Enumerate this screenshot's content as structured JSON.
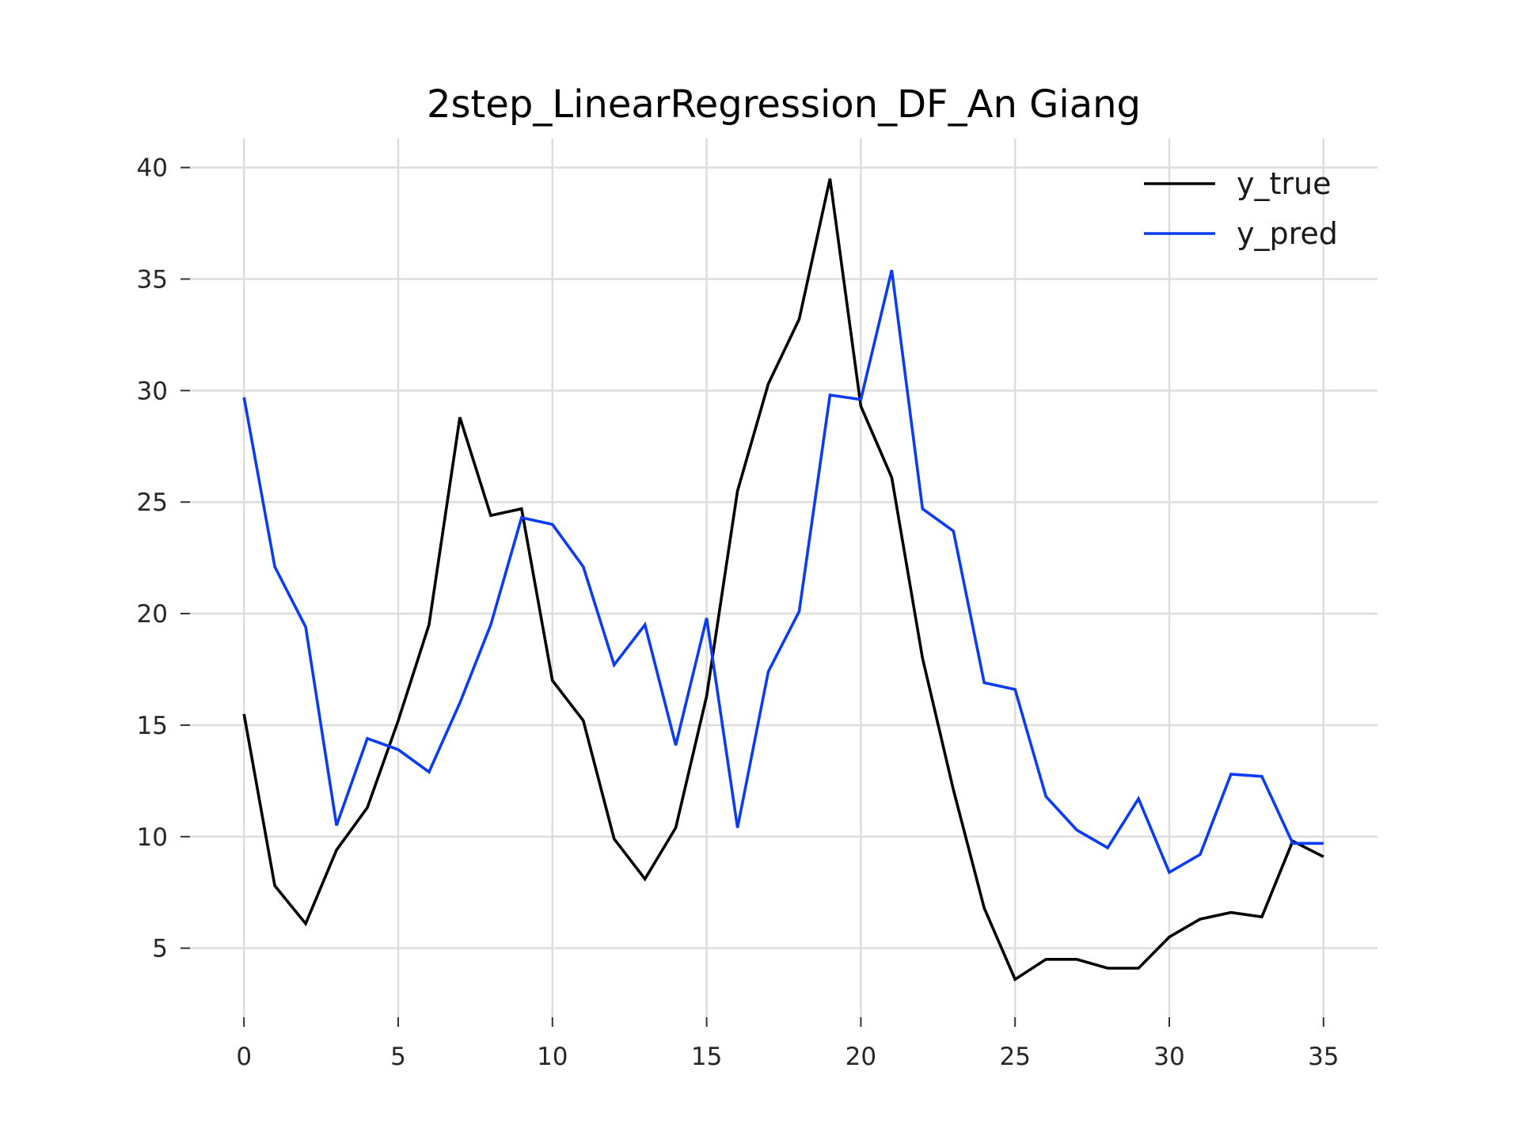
{
  "chart_data": {
    "type": "line",
    "title": "2step_LinearRegression_DF_An Giang",
    "xlabel": "",
    "ylabel": "",
    "xlim": [
      -1.75,
      36.75
    ],
    "ylim": [
      1.9,
      41.3
    ],
    "x_ticks": [
      0,
      5,
      10,
      15,
      20,
      25,
      30,
      35
    ],
    "y_ticks": [
      5,
      10,
      15,
      20,
      25,
      30,
      35,
      40
    ],
    "grid": true,
    "legend_position": "top-right",
    "x": [
      0,
      1,
      2,
      3,
      4,
      5,
      6,
      7,
      8,
      9,
      10,
      11,
      12,
      13,
      14,
      15,
      16,
      17,
      18,
      19,
      20,
      21,
      22,
      23,
      24,
      25,
      26,
      27,
      28,
      29,
      30,
      31,
      32,
      33,
      34,
      35
    ],
    "series": [
      {
        "name": "y_true",
        "color": "#000000",
        "values": [
          15.5,
          7.8,
          6.1,
          9.4,
          11.3,
          15.2,
          19.5,
          28.8,
          24.4,
          24.7,
          17.0,
          15.2,
          9.9,
          8.1,
          10.4,
          16.3,
          25.5,
          30.3,
          33.2,
          39.5,
          29.3,
          26.1,
          18.0,
          12.1,
          6.8,
          3.6,
          4.5,
          4.5,
          4.1,
          4.1,
          5.5,
          6.3,
          6.6,
          6.4,
          9.8,
          9.1
        ],
        "legend_label": "y_true"
      },
      {
        "name": "y_pred",
        "color": "#0a3cf5",
        "values": [
          29.7,
          22.1,
          19.4,
          10.5,
          14.4,
          13.9,
          12.9,
          16.0,
          19.5,
          24.3,
          24.0,
          22.1,
          17.7,
          19.5,
          14.1,
          19.8,
          10.4,
          17.4,
          20.1,
          29.8,
          29.6,
          35.4,
          24.7,
          23.7,
          16.9,
          16.6,
          11.8,
          10.3,
          9.5,
          11.7,
          8.4,
          9.2,
          12.8,
          12.7,
          9.7,
          9.7
        ],
        "legend_label": "y_pred"
      }
    ]
  }
}
